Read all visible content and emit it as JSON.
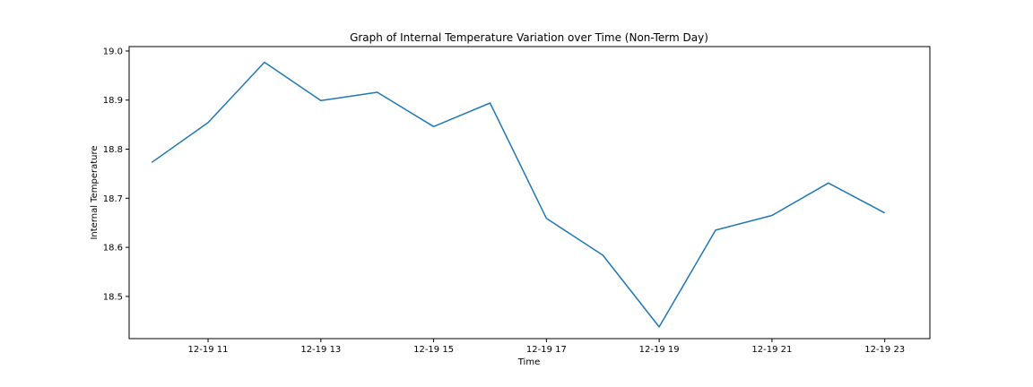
{
  "chart_data": {
    "type": "line",
    "title": "Graph of Internal Temperature Variation over Time (Non-Term Day)",
    "xlabel": "Time",
    "ylabel": "Internal Temperature",
    "x": [
      "12-19 10",
      "12-19 11",
      "12-19 12",
      "12-19 13",
      "12-19 14",
      "12-19 15",
      "12-19 16",
      "12-19 17",
      "12-19 18",
      "12-19 19",
      "12-19 20",
      "12-19 21",
      "12-19 22",
      "12-19 23"
    ],
    "x_ticks": [
      "12-19 11",
      "12-19 13",
      "12-19 15",
      "12-19 17",
      "12-19 19",
      "12-19 21",
      "12-19 23"
    ],
    "y_ticks": [
      "18.5",
      "18.6",
      "18.7",
      "18.8",
      "18.9",
      "19.0"
    ],
    "series": [
      {
        "values": [
          18.773,
          18.854,
          18.977,
          18.899,
          18.916,
          18.846,
          18.894,
          18.659,
          18.584,
          18.438,
          18.635,
          18.665,
          18.731,
          18.67
        ],
        "color": "#1f77b4"
      }
    ],
    "xlim": [
      9.6,
      23.8
    ],
    "ylim": [
      18.414,
      19.009
    ],
    "grid": false,
    "legend": false
  }
}
